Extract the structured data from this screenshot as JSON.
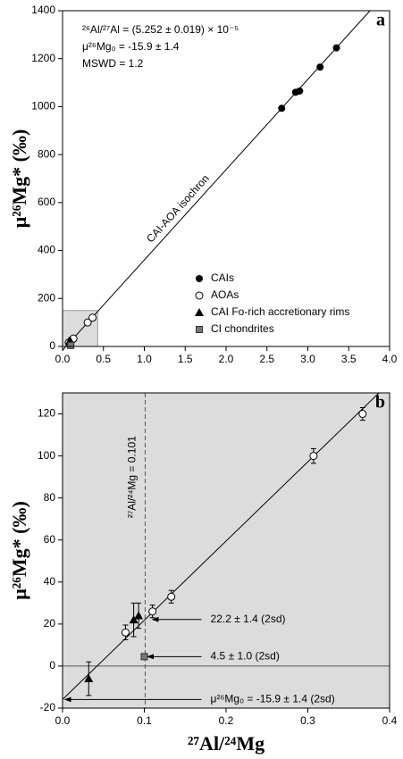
{
  "chart_data": [
    {
      "type": "scatter",
      "panel_label": "a",
      "ylabel": "μ²⁶Mg* (‰)",
      "background": "#ffffff",
      "xlim": [
        0,
        4.0
      ],
      "xticks": [
        {
          "value": 0,
          "label": "0.0"
        },
        {
          "value": 0.5,
          "label": "0.5"
        },
        {
          "value": 1.0,
          "label": "1.0"
        },
        {
          "value": 1.5,
          "label": "1.5"
        },
        {
          "value": 2.0,
          "label": "2.0"
        },
        {
          "value": 2.5,
          "label": "2.5"
        },
        {
          "value": 3.0,
          "label": "3.0"
        },
        {
          "value": 3.5,
          "label": "3.5"
        },
        {
          "value": 4.0,
          "label": "4.0"
        }
      ],
      "ylim": [
        0,
        1400
      ],
      "yticks": [
        0,
        200,
        400,
        600,
        800,
        1000,
        1200,
        1400
      ],
      "annotation_lines": [
        "²⁶Al/²⁷Al = (5.252 ± 0.019) × 10⁻⁵",
        "μ²⁶Mg₀ = -15.9 ± 1.4",
        "MSWD = 1.2"
      ],
      "fit_line": {
        "x": [
          0,
          3.76
        ],
        "y": [
          -15.9,
          1400
        ],
        "label": "CAI-AOA isochron"
      },
      "highlight": {
        "x": [
          0,
          0.43
        ],
        "y": [
          0,
          150
        ]
      },
      "legend": "lower right",
      "series": [
        {
          "name": "CAIs",
          "marker": "filled-circle",
          "color": "#000000",
          "x": [
            2.68,
            2.85,
            2.9,
            3.15,
            3.35
          ],
          "values": [
            993,
            1060,
            1065,
            1165,
            1245
          ]
        },
        {
          "name": "AOAs",
          "marker": "open-circle",
          "color": "#000000",
          "x": [
            0.077,
            0.11,
            0.133,
            0.307,
            0.367
          ],
          "values": [
            16,
            26,
            33,
            100,
            120
          ]
        },
        {
          "name": "CAI Fo-rich accretionary rims",
          "marker": "triangle",
          "color": "#000000",
          "x": [
            0.032,
            0.087,
            0.093
          ],
          "values": [
            -6,
            22,
            24
          ]
        },
        {
          "name": "CI chondrites",
          "marker": "square",
          "color": "#777777",
          "x": [
            0.1
          ],
          "values": [
            4.5
          ]
        }
      ]
    },
    {
      "type": "scatter",
      "panel_label": "b",
      "ylabel": "μ²⁶Mg* (‰)",
      "xlabel": "²⁷Al/²⁴Mg",
      "background": "#dcdcdc",
      "xlim": [
        0,
        0.4
      ],
      "xticks": [
        {
          "value": 0,
          "label": "0.0"
        },
        0.1,
        0.2,
        0.3,
        0.4
      ],
      "ylim": [
        -20,
        130
      ],
      "yticks": [
        -20,
        0,
        20,
        40,
        60,
        80,
        100,
        120
      ],
      "hline": 0,
      "vline": {
        "x": 0.101,
        "label": "²⁷Al/²⁴Mg = 0.101"
      },
      "fit_line": {
        "x": [
          0,
          0.387
        ],
        "y": [
          -15.9,
          130
        ]
      },
      "annotations": [
        {
          "text": "22.2 ± 1.4 (2sd)",
          "y": 22.2,
          "arrow_x": [
            0.17,
            0.11
          ]
        },
        {
          "text": "4.5 ± 1.0 (2sd)",
          "y": 4.5,
          "arrow_x": [
            0.17,
            0.104
          ]
        },
        {
          "text": "μ²⁶Mg₀ = -15.9 ± 1.4 (2sd)",
          "y": -15.9,
          "arrow_x": [
            0.17,
            0.003
          ]
        }
      ],
      "series": [
        {
          "marker": "open-circle",
          "color": "#000000",
          "x": [
            0.077,
            0.11,
            0.133,
            0.307,
            0.367
          ],
          "values": [
            16,
            26,
            33,
            100,
            120
          ],
          "errors": [
            3.5,
            3,
            3,
            3.5,
            3
          ]
        },
        {
          "marker": "triangle",
          "color": "#000000",
          "x": [
            0.032,
            0.087,
            0.093
          ],
          "values": [
            -6,
            22,
            24
          ],
          "errors": [
            8,
            8,
            6
          ]
        },
        {
          "marker": "square",
          "color": "#777777",
          "x": [
            0.1
          ],
          "values": [
            4.5
          ],
          "errors": [
            1.0
          ]
        }
      ]
    }
  ]
}
